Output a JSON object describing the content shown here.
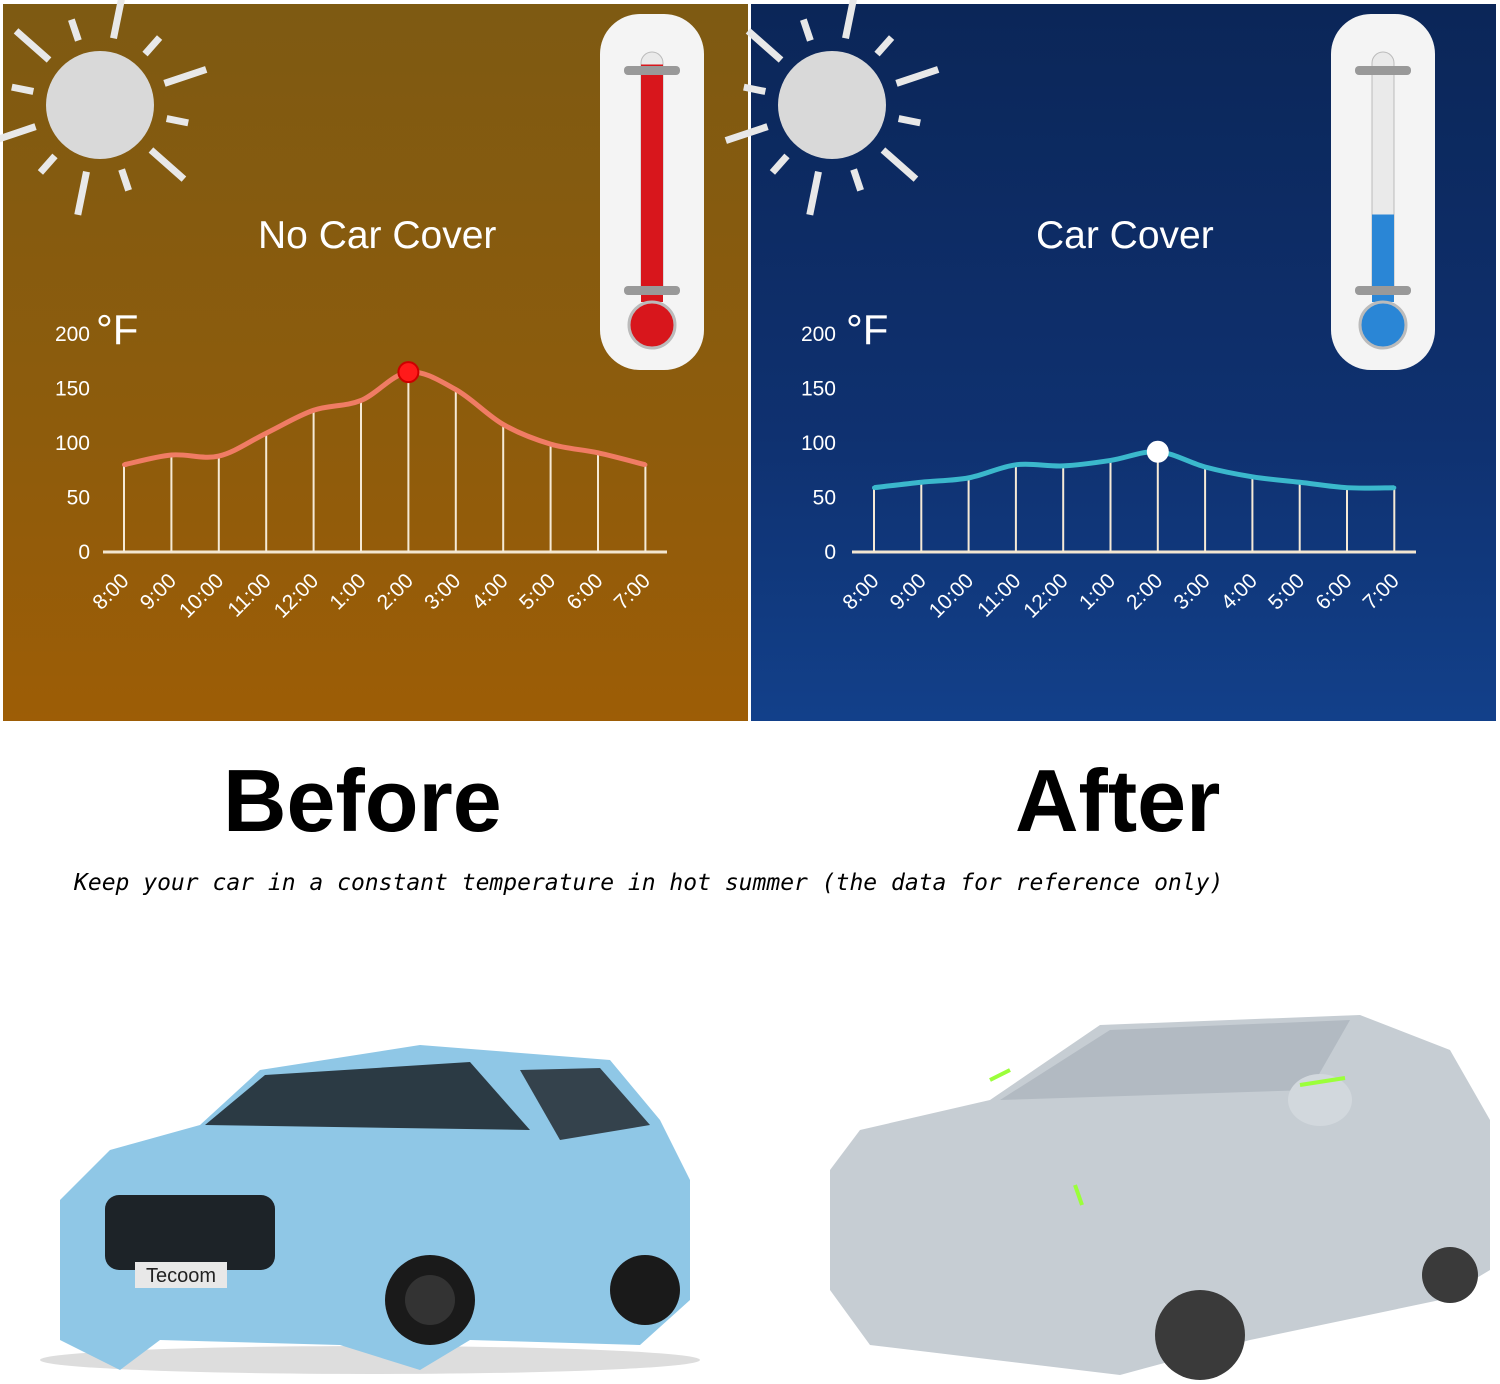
{
  "colors": {
    "left_bg": "#8e5c0c",
    "right_bg": "#0f3170",
    "left_line": "#f07c64",
    "right_line": "#3bb8cc",
    "left_peak": "#ff1a1a",
    "right_peak": "#ffffff",
    "thermo_hot": "#d8161c",
    "thermo_cool": "#2a86d6"
  },
  "icons": {
    "sun": "sun-icon",
    "thermometer": "thermometer-icon"
  },
  "labels": {
    "before": "Before",
    "after": "After",
    "caption": "Keep your car in a constant temperature in hot summer (the data for reference only)",
    "logo": "Tecoom"
  },
  "chart_data": [
    {
      "type": "line",
      "title": "No Car Cover",
      "ylabel": "°F",
      "ylim": [
        0,
        200
      ],
      "yticks": [
        0,
        50,
        100,
        150,
        200
      ],
      "categories": [
        "8:00",
        "9:00",
        "10:00",
        "11:00",
        "12:00",
        "1:00",
        "2:00",
        "3:00",
        "4:00",
        "5:00",
        "6:00",
        "7:00"
      ],
      "values": [
        80,
        89,
        88,
        109,
        130,
        139,
        165,
        149,
        117,
        99,
        91,
        80
      ],
      "highlight": "2:00",
      "thermometer_level": 0.95
    },
    {
      "type": "line",
      "title": "Car Cover",
      "ylabel": "°F",
      "ylim": [
        0,
        200
      ],
      "yticks": [
        0,
        50,
        100,
        150,
        200
      ],
      "categories": [
        "8:00",
        "9:00",
        "10:00",
        "11:00",
        "12:00",
        "1:00",
        "2:00",
        "3:00",
        "4:00",
        "5:00",
        "6:00",
        "7:00"
      ],
      "values": [
        59,
        64,
        68,
        80,
        79,
        84,
        92,
        78,
        69,
        64,
        59,
        59
      ],
      "highlight": "2:00",
      "thermometer_level": 0.35
    }
  ]
}
